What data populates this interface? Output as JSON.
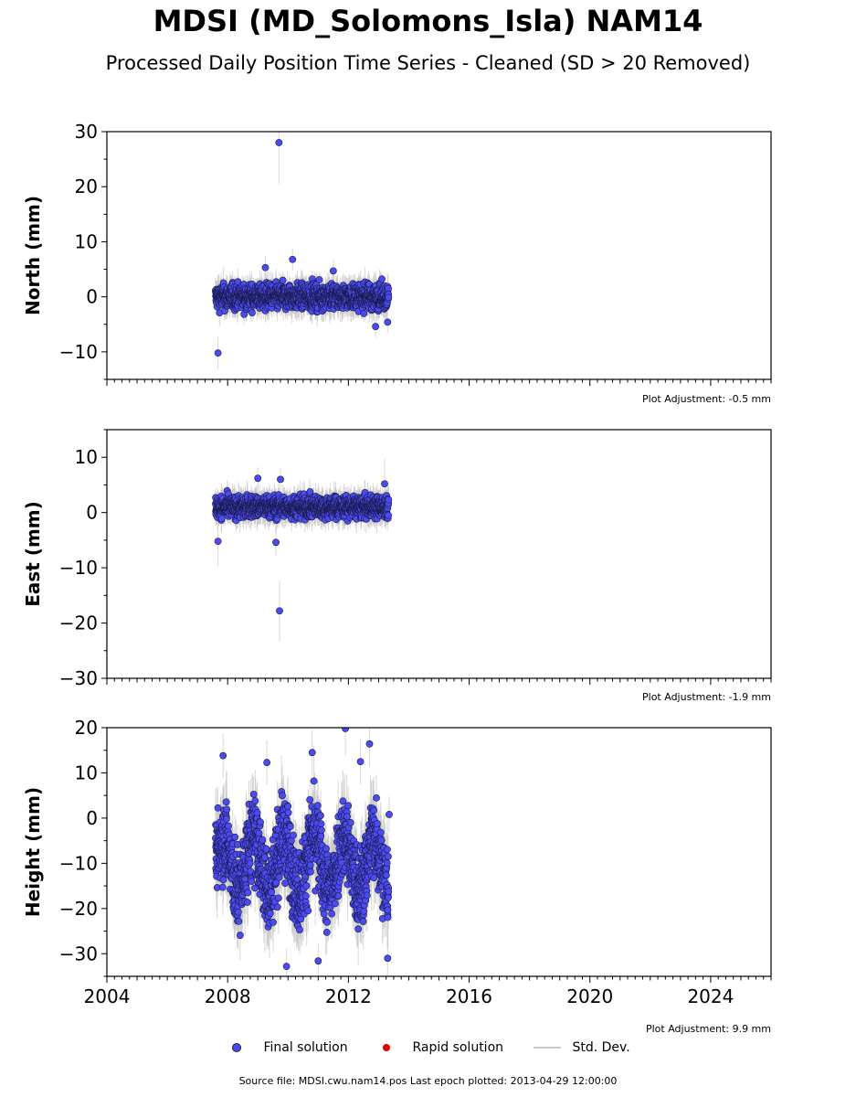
{
  "title": "MDSI (MD_Solomons_Isla) NAM14",
  "subtitle": "Processed Daily Position Time Series - Cleaned (SD > 20 Removed)",
  "source_text": "Source file: MDSI.cwu.nam14.pos  Last epoch plotted: 2013-04-29 12:00:00",
  "colors": {
    "final": "#4b4bf0",
    "rapid": "#e00000",
    "stddev": "#c8c8c8"
  },
  "chart_data": {
    "type": "scatter",
    "shared_x": {
      "range": [
        2004.0,
        2026.0
      ],
      "ticks": [
        2004,
        2008,
        2012,
        2016,
        2020,
        2024
      ],
      "tick_labels": [
        "2004",
        "2008",
        "2012",
        "2016",
        "2020",
        "2024"
      ]
    },
    "legend": {
      "placement": "bottom-center",
      "entries": [
        {
          "name": "Final solution",
          "marker": "circle",
          "color": "#4b4bf0"
        },
        {
          "name": "Rapid solution",
          "marker": "circle",
          "color": "#e00000"
        },
        {
          "name": "Std. Dev.",
          "marker": "line",
          "color": "#c8c8c8"
        }
      ]
    },
    "panels": [
      {
        "id": "north",
        "ylabel": "North (mm)",
        "ylim": [
          -15,
          30
        ],
        "yticks": [
          -10,
          0,
          10,
          20,
          30
        ],
        "ytick_labels": [
          "−10",
          "0",
          "10",
          "20",
          "30"
        ],
        "adjustment": "Plot Adjustment: -0.5 mm",
        "data_range": [
          2007.6,
          2013.33
        ],
        "band": {
          "mean": 0.0,
          "spread": 1.6,
          "sd": 1.9
        },
        "outliers": [
          [
            2009.7,
            28.0,
            7.5
          ],
          [
            2007.68,
            -10.2,
            3.0
          ],
          [
            2010.15,
            6.8,
            2.0
          ],
          [
            2009.25,
            5.3,
            2.0
          ],
          [
            2011.5,
            4.7,
            2.0
          ],
          [
            2012.9,
            -5.4,
            2.0
          ],
          [
            2013.3,
            -4.6,
            2.0
          ]
        ]
      },
      {
        "id": "east",
        "ylabel": "East (mm)",
        "ylim": [
          -30,
          15
        ],
        "yticks": [
          -30,
          -20,
          -10,
          0,
          10
        ],
        "ytick_labels": [
          "−30",
          "−20",
          "−10",
          "0",
          "10"
        ],
        "adjustment": "Plot Adjustment: -1.9 mm",
        "data_range": [
          2007.6,
          2013.33
        ],
        "band": {
          "mean": 1.0,
          "spread": 1.4,
          "sd": 1.8
        },
        "outliers": [
          [
            2009.72,
            -17.8,
            5.5
          ],
          [
            2009.6,
            -5.4,
            2.5
          ],
          [
            2007.68,
            -5.2,
            4.5
          ],
          [
            2009.0,
            6.2,
            2.0
          ],
          [
            2009.75,
            6.0,
            2.0
          ],
          [
            2013.2,
            5.2,
            4.5
          ]
        ]
      },
      {
        "id": "height",
        "ylabel": "Height (mm)",
        "ylim": [
          -35,
          20
        ],
        "yticks": [
          -30,
          -20,
          -10,
          0,
          10,
          20
        ],
        "ytick_labels": [
          "−30",
          "−20",
          "−10",
          "0",
          "10",
          "20"
        ],
        "adjustment": "Plot Adjustment: 9.9 mm",
        "data_range": [
          2007.6,
          2013.33
        ],
        "band": {
          "mean": -10.0,
          "spread": 6.5,
          "sd": 5.5,
          "seasonal": 6.0
        },
        "outliers": [
          [
            2011.9,
            19.8,
            6.0
          ],
          [
            2012.7,
            16.4,
            5.0
          ],
          [
            2010.8,
            14.5,
            5.0
          ],
          [
            2007.85,
            13.8,
            5.0
          ],
          [
            2012.4,
            12.5,
            5.0
          ],
          [
            2009.3,
            12.3,
            5.0
          ],
          [
            2009.95,
            -32.8,
            4.0
          ],
          [
            2011.0,
            -31.6,
            4.0
          ],
          [
            2013.3,
            -31.0,
            4.0
          ],
          [
            2013.35,
            0.8,
            4.0
          ]
        ]
      }
    ]
  }
}
